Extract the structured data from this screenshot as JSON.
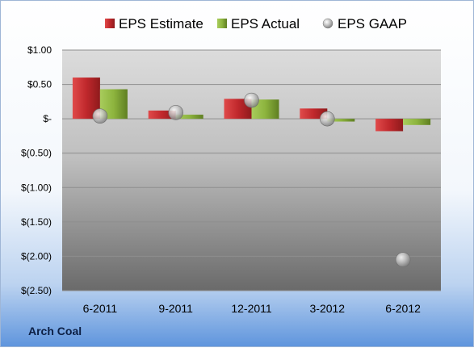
{
  "company": "Arch Coal",
  "chart_data": {
    "type": "bar",
    "categories": [
      "6-2011",
      "9-2011",
      "12-2011",
      "3-2012",
      "6-2012"
    ],
    "series": [
      {
        "name": "EPS Estimate",
        "kind": "bar",
        "color": "#c0282c",
        "values": [
          0.6,
          0.12,
          0.29,
          0.15,
          -0.18
        ]
      },
      {
        "name": "EPS Actual",
        "kind": "bar",
        "color": "#8db43e",
        "values": [
          0.43,
          0.06,
          0.28,
          -0.04,
          -0.09
        ]
      },
      {
        "name": "EPS GAAP",
        "kind": "marker",
        "color": "#a6a6a6",
        "values": [
          0.04,
          0.09,
          0.27,
          0.0,
          -2.05
        ]
      }
    ],
    "yticks": [
      1.0,
      0.5,
      0,
      -0.5,
      -1.0,
      -1.5,
      -2.0,
      -2.5
    ],
    "ytick_labels": [
      "$1.00",
      "$0.50",
      "$-",
      "$(0.50)",
      "$(1.00)",
      "$(1.50)",
      "$(2.00)",
      "$(2.50)"
    ],
    "ylim": [
      -2.5,
      1.0
    ],
    "grid": true,
    "legend_position": "top"
  }
}
